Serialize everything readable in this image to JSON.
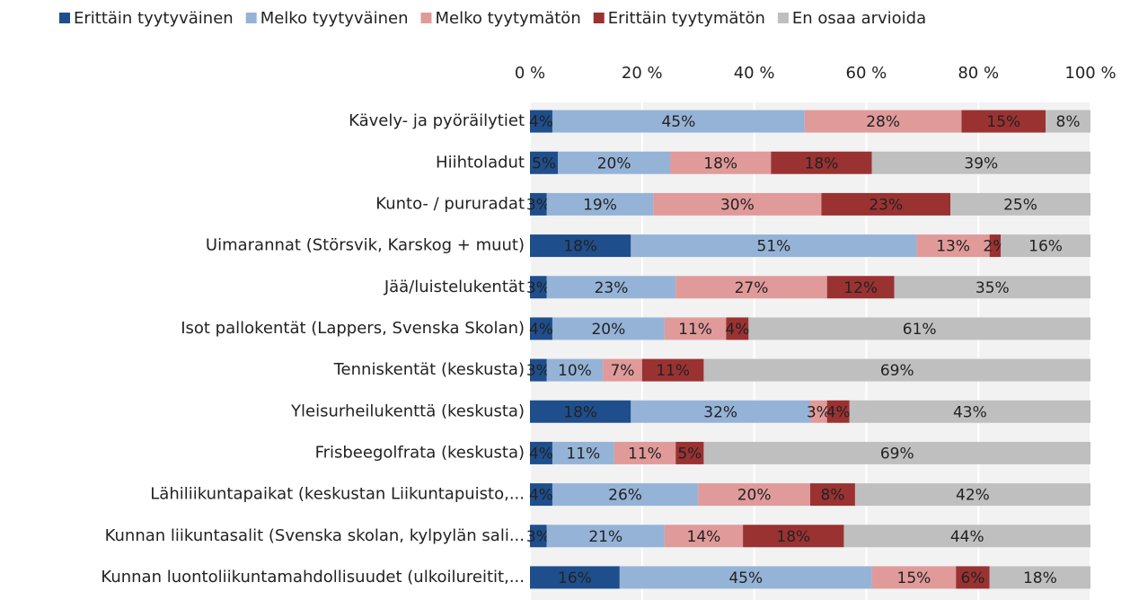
{
  "chart_data": {
    "type": "stacked_bar_horizontal",
    "categories": [
      "Kävely- ja pyöräilytiet",
      "Hiihtoladut",
      "Kunto- / pururadat",
      "Uimarannat (Störsvik, Karskog + muut)",
      "Jää/luistelukentät",
      "Isot pallokentät (Lappers, Svenska Skolan)",
      "Tenniskentät (keskusta)",
      "Yleisurheilukenttä  (keskusta)",
      "Frisbeegolfrata (keskusta)",
      "Lähiliikuntapaikat (keskustan Liikuntapuisto,...",
      "Kunnan liikuntasalit (Svenska skolan, kylpylän sali...",
      "Kunnan luontoliikuntamahdollisuudet (ulkoilureitit,..."
    ],
    "series": [
      {
        "name": "Erittäin tyytyväinen",
        "color": "#1f4e8c",
        "values": [
          4,
          5,
          3,
          18,
          3,
          4,
          3,
          18,
          4,
          4,
          3,
          16
        ],
        "value_labels": [
          "4%",
          "5%",
          "3%",
          "18%",
          "3%",
          "4%",
          "3%",
          "18%",
          "4%",
          "4%",
          "3%",
          "16%"
        ]
      },
      {
        "name": "Melko tyytyväinen",
        "color": "#95b3d7",
        "values": [
          45,
          20,
          19,
          51,
          23,
          20,
          10,
          32,
          11,
          26,
          21,
          45
        ],
        "value_labels": [
          "45%",
          "20%",
          "19%",
          "51%",
          "23%",
          "20%",
          "10%",
          "32%",
          "11%",
          "26%",
          "21%",
          "45%"
        ]
      },
      {
        "name": "Melko tyytymätön",
        "color": "#e09a9a",
        "values": [
          28,
          18,
          30,
          13,
          27,
          11,
          7,
          3,
          11,
          20,
          14,
          15
        ],
        "value_labels": [
          "28%",
          "18%",
          "30%",
          "13%",
          "27%",
          "11%",
          "7%",
          "3%",
          "11%",
          "20%",
          "14%",
          "15%"
        ]
      },
      {
        "name": "Erittäin tyytymätön",
        "color": "#9a3232",
        "values": [
          15,
          18,
          23,
          2,
          12,
          4,
          11,
          4,
          5,
          8,
          18,
          6
        ],
        "value_labels": [
          "15%",
          "18%",
          "23%",
          "2%",
          "12%",
          "4%",
          "11%",
          "4%",
          "5%",
          "8%",
          "18%",
          "6%"
        ]
      },
      {
        "name": "En osaa arvioida",
        "color": "#bfbfbf",
        "values": [
          8,
          39,
          25,
          16,
          35,
          61,
          69,
          43,
          69,
          42,
          44,
          18
        ],
        "value_labels": [
          "8%",
          "39%",
          "25%",
          "16%",
          "35%",
          "61%",
          "69%",
          "43%",
          "69%",
          "42%",
          "44%",
          "18%"
        ]
      }
    ],
    "xlim": [
      0,
      100
    ],
    "xticks": [
      {
        "value": 0,
        "label": "0 %"
      },
      {
        "value": 20,
        "label": "20 %"
      },
      {
        "value": 40,
        "label": "40 %"
      },
      {
        "value": 60,
        "label": "60 %"
      },
      {
        "value": 80,
        "label": "80 %"
      },
      {
        "value": 100,
        "label": "100 %"
      }
    ],
    "grid": true,
    "legend": "top"
  }
}
